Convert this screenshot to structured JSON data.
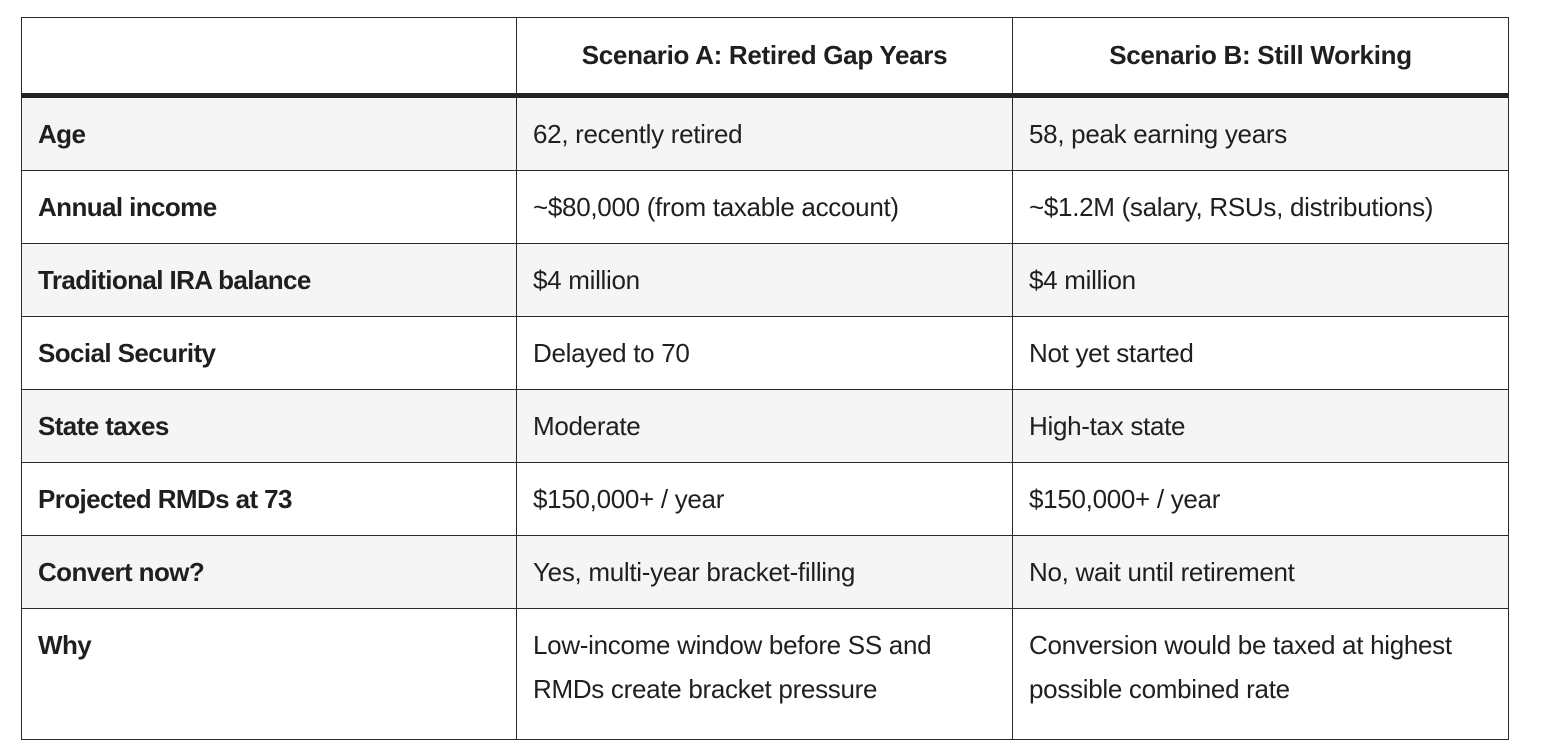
{
  "table": {
    "headers": [
      "",
      "Scenario A: Retired Gap Years",
      "Scenario B: Still Working"
    ],
    "rows": [
      {
        "label": "Age",
        "a": "62, recently retired",
        "b": "58, peak earning years"
      },
      {
        "label": "Annual income",
        "a": "~$80,000 (from taxable account)",
        "b": "~$1.2M (salary, RSUs, distributions)"
      },
      {
        "label": "Traditional IRA balance",
        "a": "$4 million",
        "b": "$4 million"
      },
      {
        "label": "Social Security",
        "a": "Delayed to 70",
        "b": "Not yet started"
      },
      {
        "label": "State taxes",
        "a": "Moderate",
        "b": "High-tax state"
      },
      {
        "label": "Projected RMDs at 73",
        "a": "$150,000+ / year",
        "b": "$150,000+ / year"
      },
      {
        "label": "Convert now?",
        "a": "Yes, multi-year bracket-filling",
        "b": "No, wait until retirement"
      },
      {
        "label": "Why",
        "a": "Low-income window before SS and RMDs create bracket pressure",
        "b": "Conversion would be taxed at highest possible combined rate"
      }
    ]
  }
}
